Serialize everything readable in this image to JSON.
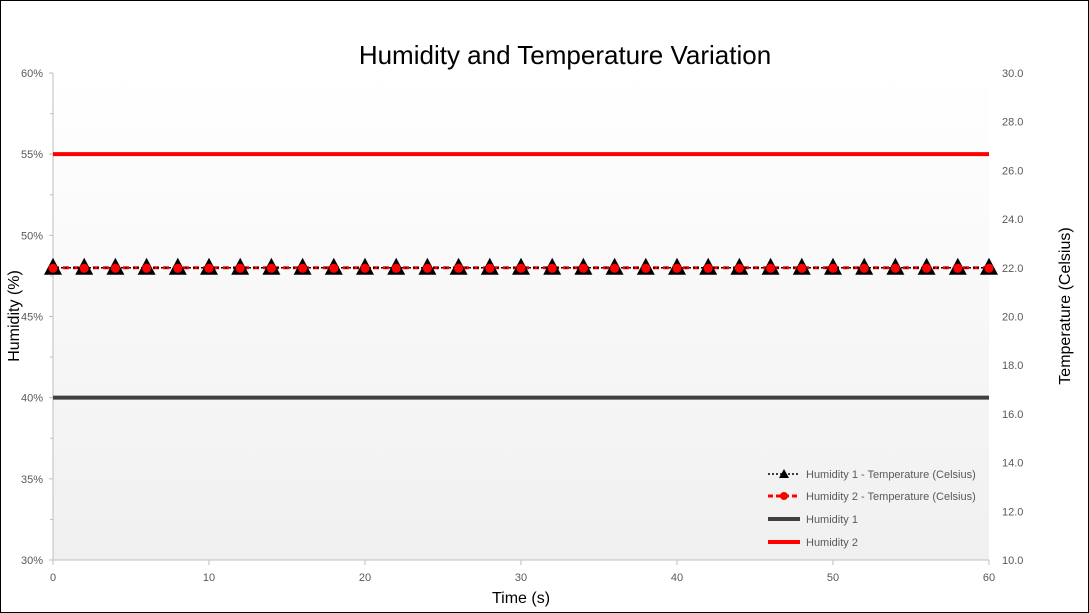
{
  "chart_data": {
    "type": "line",
    "title": "Humidity and Temperature Variation",
    "xlabel": "Time (s)",
    "ylabel": "Humidity (%)",
    "y2label": "Temperature (Celsius)",
    "xlim": [
      0,
      60
    ],
    "ylim": [
      0.3,
      0.6
    ],
    "y2lim": [
      10.0,
      30.0
    ],
    "x_ticks": [
      "0",
      "10",
      "20",
      "30",
      "40",
      "50",
      "60"
    ],
    "y_ticks": [
      "30%",
      "35%",
      "40%",
      "45%",
      "50%",
      "55%",
      "60%"
    ],
    "y2_ticks": [
      "10.0",
      "12.0",
      "14.0",
      "16.0",
      "18.0",
      "20.0",
      "22.0",
      "24.0",
      "26.0",
      "28.0",
      "30.0"
    ],
    "x": [
      0,
      2,
      4,
      6,
      8,
      10,
      12,
      14,
      16,
      18,
      20,
      22,
      24,
      26,
      28,
      30,
      32,
      34,
      36,
      38,
      40,
      42,
      44,
      46,
      48,
      50,
      52,
      54,
      56,
      58,
      60
    ],
    "legend_position": "bottom-right",
    "grid": false,
    "series": [
      {
        "name": "Humidity 1 - Temperature (Celsius)",
        "axis": "right",
        "style": "dotted-triangle",
        "color": "#000000",
        "values": [
          22,
          22,
          22,
          22,
          22,
          22,
          22,
          22,
          22,
          22,
          22,
          22,
          22,
          22,
          22,
          22,
          22,
          22,
          22,
          22,
          22,
          22,
          22,
          22,
          22,
          22,
          22,
          22,
          22,
          22,
          22
        ]
      },
      {
        "name": "Humidity 2 - Temperature (Celsius)",
        "axis": "right",
        "style": "dashed-circle",
        "color": "#ff0000",
        "values": [
          22,
          22,
          22,
          22,
          22,
          22,
          22,
          22,
          22,
          22,
          22,
          22,
          22,
          22,
          22,
          22,
          22,
          22,
          22,
          22,
          22,
          22,
          22,
          22,
          22,
          22,
          22,
          22,
          22,
          22,
          22
        ]
      },
      {
        "name": "Humidity 1",
        "axis": "left",
        "style": "solid",
        "color": "#404040",
        "values": [
          0.4,
          0.4,
          0.4,
          0.4,
          0.4,
          0.4,
          0.4,
          0.4,
          0.4,
          0.4,
          0.4,
          0.4,
          0.4,
          0.4,
          0.4,
          0.4,
          0.4,
          0.4,
          0.4,
          0.4,
          0.4,
          0.4,
          0.4,
          0.4,
          0.4,
          0.4,
          0.4,
          0.4,
          0.4,
          0.4,
          0.4
        ]
      },
      {
        "name": "Humidity 2",
        "axis": "left",
        "style": "solid",
        "color": "#ff0000",
        "values": [
          0.55,
          0.55,
          0.55,
          0.55,
          0.55,
          0.55,
          0.55,
          0.55,
          0.55,
          0.55,
          0.55,
          0.55,
          0.55,
          0.55,
          0.55,
          0.55,
          0.55,
          0.55,
          0.55,
          0.55,
          0.55,
          0.55,
          0.55,
          0.55,
          0.55,
          0.55,
          0.55,
          0.55,
          0.55,
          0.55,
          0.55
        ]
      }
    ]
  }
}
